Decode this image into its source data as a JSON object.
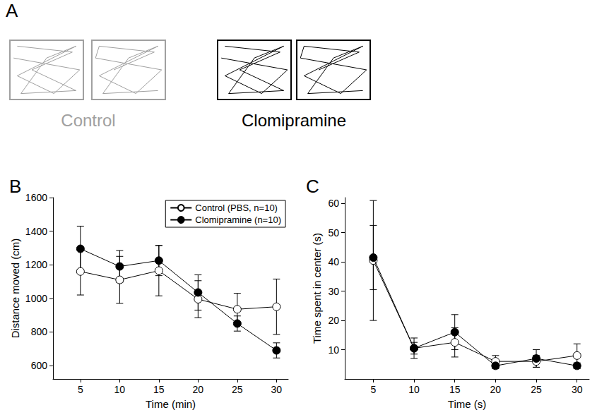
{
  "panel_a": {
    "label": "A",
    "groups": [
      {
        "name": "Control",
        "color": "#a0a0a0"
      },
      {
        "name": "Clomipramine",
        "color": "#000000"
      }
    ]
  },
  "chart_data": [
    {
      "type": "line",
      "title": "B",
      "x_label": "Time (min)",
      "y_label": "Distance moved (cm)",
      "x": [
        5,
        10,
        15,
        20,
        25,
        30
      ],
      "xlim": [
        1.5,
        31.5
      ],
      "xticks": [
        5,
        10,
        15,
        20,
        25,
        30
      ],
      "ylim": [
        520,
        1600
      ],
      "yticks": [
        600,
        800,
        1000,
        1200,
        1400,
        1600
      ],
      "grid": false,
      "legend": "upper right",
      "series": [
        {
          "name": "Control (PBS, n=10)",
          "color": "#000000",
          "marker": "open_circle",
          "line_style": "solid",
          "values": [
            1160,
            1110,
            1165,
            995,
            935,
            950
          ],
          "errors": [
            140,
            140,
            150,
            110,
            95,
            165
          ]
        },
        {
          "name": "Clomipramine (n=10)",
          "color": "#000000",
          "marker": "filled_circle",
          "line_style": "solid",
          "values": [
            1295,
            1190,
            1225,
            1035,
            850,
            690
          ],
          "errors": [
            135,
            95,
            90,
            105,
            45,
            45
          ]
        }
      ]
    },
    {
      "type": "line",
      "title": "C",
      "x_label": "Time (s)",
      "y_label": "Time spent in center (s)",
      "x": [
        5,
        10,
        15,
        20,
        25,
        30
      ],
      "xlim": [
        1.5,
        31.5
      ],
      "xticks": [
        5,
        10,
        15,
        20,
        25,
        30
      ],
      "ylim": [
        0,
        62
      ],
      "yticks": [
        10,
        20,
        30,
        40,
        50,
        60
      ],
      "grid": false,
      "series": [
        {
          "name": "Control (PBS, n=10)",
          "color": "#000000",
          "marker": "open_circle",
          "line_style": "solid",
          "values": [
            40.5,
            10.5,
            12.5,
            6,
            6,
            8
          ],
          "errors": [
            20.5,
            3.5,
            5,
            2,
            2,
            4
          ]
        },
        {
          "name": "Clomipramine (n=10)",
          "color": "#000000",
          "marker": "filled_circle",
          "line_style": "solid",
          "values": [
            41.5,
            10.5,
            16,
            4.5,
            7,
            4.5
          ],
          "errors": [
            11,
            2,
            6,
            1,
            3,
            1
          ]
        }
      ]
    }
  ]
}
